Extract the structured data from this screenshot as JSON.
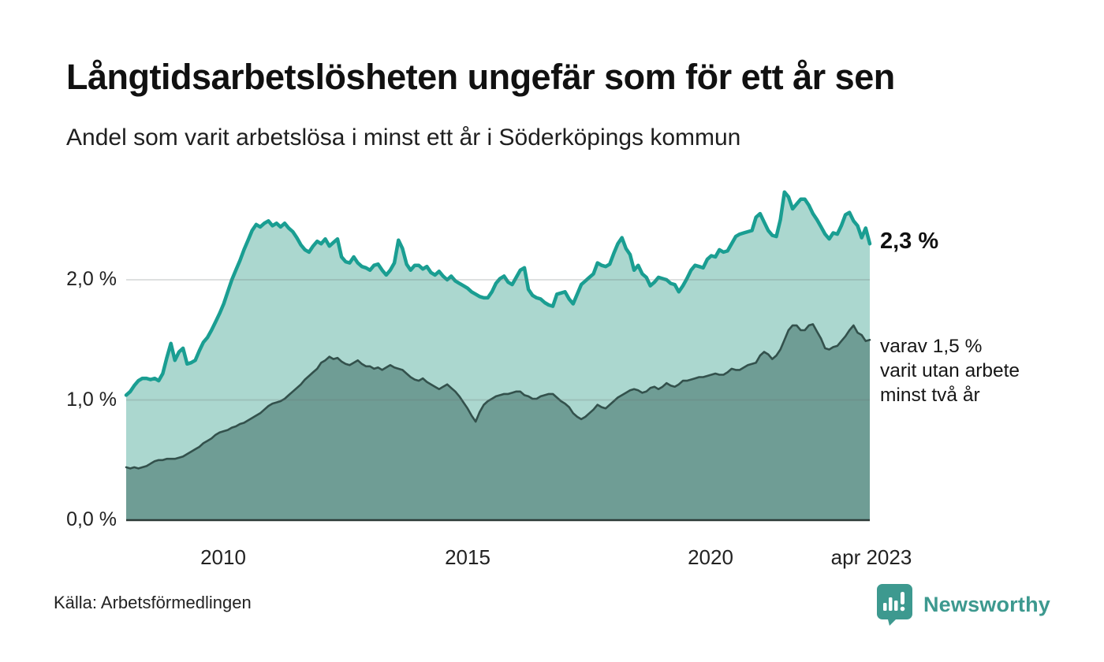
{
  "header": {
    "title": "Långtidsarbetslösheten ungefär som för ett år sen",
    "subtitle": "Andel som varit arbetslösa i minst ett år i Söderköpings kommun"
  },
  "annotations": {
    "total_end_label": "2,3 %",
    "subset_label_lines": [
      "varav 1,5 %",
      "varit utan arbete",
      "minst två år"
    ]
  },
  "footer": {
    "source": "Källa: Arbetsförmedlingen",
    "brand": "Newsworthy"
  },
  "colors": {
    "total_line": "#1a9e92",
    "total_fill": "#abd7cf",
    "subset_line": "#33514c",
    "subset_fill": "#6f9d95",
    "gridline": "rgba(104,116,113,0.22)",
    "baseline": "#2c3a37",
    "brand_teal": "#3d998f"
  },
  "chart_data": {
    "type": "area",
    "title": "Långtidsarbetslösheten ungefär som för ett år sen",
    "subtitle": "Andel som varit arbetslösa i minst ett år i Söderköpings kommun",
    "unit": "%",
    "x_start": "2008-01",
    "x_end": "2023-04",
    "frequency": "monthly",
    "x_tick_labels": [
      "2010",
      "2015",
      "2020",
      "apr 2023"
    ],
    "x_tick_years": [
      2010.0,
      2015.0,
      2020.0,
      2023.29
    ],
    "y_tick_labels": [
      "0,0 %",
      "1,0 %",
      "2,0 %"
    ],
    "y_ticks": [
      0,
      1,
      2
    ],
    "ylim": [
      0,
      2.82
    ],
    "grid": "horizontal only",
    "legend_position": "right-of-line end labels",
    "series": [
      {
        "name": "Andel arbetslösa minst ett år",
        "end_value": 2.3,
        "end_label": "2,3 %",
        "values": [
          1.04,
          1.07,
          1.12,
          1.16,
          1.18,
          1.18,
          1.17,
          1.18,
          1.16,
          1.22,
          1.35,
          1.47,
          1.33,
          1.4,
          1.43,
          1.3,
          1.31,
          1.33,
          1.41,
          1.48,
          1.52,
          1.58,
          1.65,
          1.72,
          1.8,
          1.9,
          2.0,
          2.08,
          2.16,
          2.25,
          2.33,
          2.41,
          2.46,
          2.44,
          2.47,
          2.49,
          2.45,
          2.47,
          2.44,
          2.47,
          2.43,
          2.4,
          2.35,
          2.29,
          2.25,
          2.23,
          2.28,
          2.32,
          2.3,
          2.34,
          2.28,
          2.31,
          2.34,
          2.19,
          2.15,
          2.14,
          2.19,
          2.14,
          2.11,
          2.1,
          2.08,
          2.12,
          2.13,
          2.08,
          2.04,
          2.08,
          2.14,
          2.33,
          2.26,
          2.13,
          2.08,
          2.12,
          2.12,
          2.09,
          2.11,
          2.06,
          2.04,
          2.07,
          2.03,
          2.0,
          2.03,
          1.99,
          1.97,
          1.95,
          1.93,
          1.9,
          1.88,
          1.86,
          1.85,
          1.85,
          1.9,
          1.97,
          2.01,
          2.03,
          1.98,
          1.96,
          2.02,
          2.08,
          2.1,
          1.92,
          1.87,
          1.85,
          1.84,
          1.81,
          1.79,
          1.78,
          1.88,
          1.89,
          1.9,
          1.84,
          1.8,
          1.88,
          1.96,
          1.99,
          2.02,
          2.05,
          2.14,
          2.12,
          2.11,
          2.13,
          2.22,
          2.3,
          2.35,
          2.26,
          2.21,
          2.08,
          2.12,
          2.05,
          2.02,
          1.95,
          1.98,
          2.02,
          2.01,
          2.0,
          1.97,
          1.96,
          1.9,
          1.95,
          2.01,
          2.08,
          2.12,
          2.11,
          2.1,
          2.17,
          2.2,
          2.19,
          2.25,
          2.23,
          2.24,
          2.3,
          2.36,
          2.38,
          2.39,
          2.4,
          2.41,
          2.52,
          2.55,
          2.48,
          2.41,
          2.37,
          2.36,
          2.5,
          2.73,
          2.69,
          2.59,
          2.63,
          2.67,
          2.67,
          2.62,
          2.55,
          2.5,
          2.44,
          2.38,
          2.34,
          2.39,
          2.38,
          2.45,
          2.54,
          2.56,
          2.49,
          2.45,
          2.35,
          2.43,
          2.3
        ]
      },
      {
        "name": "varav arbetslösa minst två år",
        "end_value": 1.5,
        "end_label": "varav 1,5 % varit utan arbete minst två år",
        "values": [
          0.44,
          0.43,
          0.44,
          0.43,
          0.44,
          0.45,
          0.47,
          0.49,
          0.5,
          0.5,
          0.51,
          0.51,
          0.51,
          0.52,
          0.53,
          0.55,
          0.57,
          0.59,
          0.61,
          0.64,
          0.66,
          0.68,
          0.71,
          0.73,
          0.74,
          0.75,
          0.77,
          0.78,
          0.8,
          0.81,
          0.83,
          0.85,
          0.87,
          0.89,
          0.92,
          0.95,
          0.97,
          0.98,
          0.99,
          1.01,
          1.04,
          1.07,
          1.1,
          1.13,
          1.17,
          1.2,
          1.23,
          1.26,
          1.31,
          1.33,
          1.36,
          1.34,
          1.35,
          1.32,
          1.3,
          1.29,
          1.31,
          1.33,
          1.3,
          1.28,
          1.28,
          1.26,
          1.27,
          1.25,
          1.27,
          1.29,
          1.27,
          1.26,
          1.25,
          1.22,
          1.19,
          1.17,
          1.16,
          1.18,
          1.15,
          1.13,
          1.11,
          1.09,
          1.11,
          1.13,
          1.1,
          1.07,
          1.03,
          0.98,
          0.93,
          0.87,
          0.82,
          0.9,
          0.96,
          0.99,
          1.01,
          1.03,
          1.04,
          1.05,
          1.05,
          1.06,
          1.07,
          1.07,
          1.04,
          1.03,
          1.01,
          1.01,
          1.03,
          1.04,
          1.05,
          1.05,
          1.02,
          0.99,
          0.97,
          0.94,
          0.89,
          0.86,
          0.84,
          0.86,
          0.89,
          0.92,
          0.96,
          0.94,
          0.93,
          0.96,
          0.99,
          1.02,
          1.04,
          1.06,
          1.08,
          1.09,
          1.08,
          1.06,
          1.07,
          1.1,
          1.11,
          1.09,
          1.11,
          1.14,
          1.12,
          1.11,
          1.13,
          1.16,
          1.16,
          1.17,
          1.18,
          1.19,
          1.19,
          1.2,
          1.21,
          1.22,
          1.21,
          1.21,
          1.23,
          1.26,
          1.25,
          1.25,
          1.27,
          1.29,
          1.3,
          1.31,
          1.37,
          1.4,
          1.38,
          1.34,
          1.37,
          1.42,
          1.5,
          1.58,
          1.62,
          1.62,
          1.58,
          1.58,
          1.62,
          1.63,
          1.57,
          1.51,
          1.43,
          1.42,
          1.44,
          1.45,
          1.49,
          1.53,
          1.58,
          1.62,
          1.56,
          1.54,
          1.49,
          1.5
        ]
      }
    ]
  },
  "layout_ticks": {
    "x_positions": [
      283,
      593,
      901,
      1105
    ],
    "y_positions": [
      660,
      507.5,
      355
    ]
  }
}
